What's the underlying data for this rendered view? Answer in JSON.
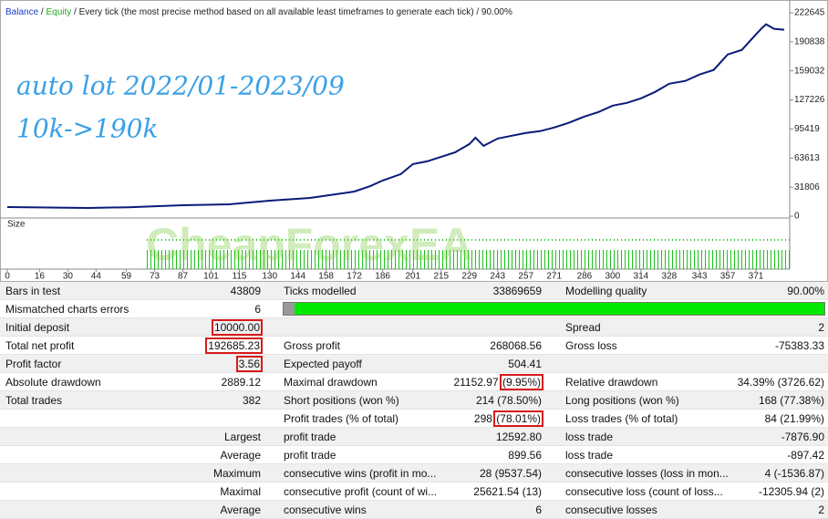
{
  "chart": {
    "header": [
      "Balance",
      " / ",
      "Equity",
      " / Every tick (the most precise method based on all available least timeframes to generate each tick) / 90.00%"
    ],
    "annotations": [
      "auto lot 2022/01-2023/09",
      "10k->190k"
    ],
    "watermark": "CheapForexEA",
    "size_label": "Size",
    "x": [
      0,
      20,
      40,
      60,
      87,
      110,
      130,
      150,
      172,
      180,
      186,
      195,
      201,
      208,
      215,
      222,
      229,
      232,
      236,
      243,
      250,
      257,
      264,
      271,
      278,
      286,
      293,
      300,
      307,
      314,
      321,
      328,
      336,
      343,
      350,
      357,
      364,
      371,
      374,
      376,
      380,
      385
    ],
    "values": [
      10000,
      9500,
      9000,
      9800,
      12000,
      13000,
      17000,
      20000,
      27000,
      33000,
      39000,
      46000,
      57000,
      60000,
      65000,
      70000,
      79000,
      86000,
      77000,
      85000,
      88000,
      91000,
      93000,
      97000,
      102000,
      109000,
      114000,
      121000,
      124000,
      129000,
      136000,
      145000,
      148000,
      155000,
      160000,
      177000,
      182000,
      199000,
      206000,
      210000,
      205000,
      204000
    ],
    "xlim": [
      0,
      387
    ],
    "ylim": [
      0,
      232600
    ],
    "yticks": [
      222645,
      190838,
      159032,
      127226,
      95419,
      63613,
      31806,
      0
    ],
    "xticks": [
      0,
      16,
      30,
      44,
      59,
      73,
      87,
      101,
      115,
      130,
      144,
      158,
      172,
      186,
      201,
      215,
      229,
      243,
      257,
      271,
      286,
      300,
      314,
      328,
      343,
      357,
      371
    ],
    "color": "#0a1a78"
  },
  "table": {
    "rows": [
      [
        "Bars in test",
        "43809",
        "Ticks modelled",
        "33869659",
        "Modelling quality",
        "90.00%"
      ],
      [
        "Mismatched charts errors",
        "6",
        null,
        null,
        null,
        null
      ],
      [
        "Initial deposit",
        "10000.00",
        null,
        null,
        "Spread",
        "2"
      ],
      [
        "Total net profit",
        "192685.23",
        "Gross profit",
        "268068.56",
        "Gross loss",
        "-75383.33"
      ],
      [
        "Profit factor",
        "3.56",
        "Expected payoff",
        "504.41",
        null,
        null
      ],
      [
        "Absolute drawdown",
        "2889.12",
        "Maximal drawdown",
        [
          "21152.97",
          "(9.95%)"
        ],
        "Relative drawdown",
        "34.39% (3726.62)"
      ],
      [
        "Total trades",
        "382",
        "Short positions (won %)",
        "214 (78.50%)",
        "Long positions (won %)",
        "168 (77.38%)"
      ],
      [
        null,
        null,
        "Profit trades (% of total)",
        [
          "298",
          "(78.01%)"
        ],
        "Loss trades (% of total)",
        "84 (21.99%)"
      ],
      [
        null,
        "Largest",
        "profit trade",
        "12592.80",
        "loss trade",
        "-7876.90"
      ],
      [
        null,
        "Average",
        "profit trade",
        "899.56",
        "loss trade",
        "-897.42"
      ],
      [
        null,
        "Maximum",
        "consecutive wins (profit in mo...",
        "28 (9537.54)",
        "consecutive losses (loss in mon...",
        "4 (-1536.87)"
      ],
      [
        null,
        "Maximal",
        "consecutive profit (count of wi...",
        "25621.54 (13)",
        "consecutive loss (count of loss...",
        "-12305.94 (2)"
      ],
      [
        null,
        "Average",
        "consecutive wins",
        "6",
        "consecutive losses",
        "2"
      ]
    ]
  }
}
